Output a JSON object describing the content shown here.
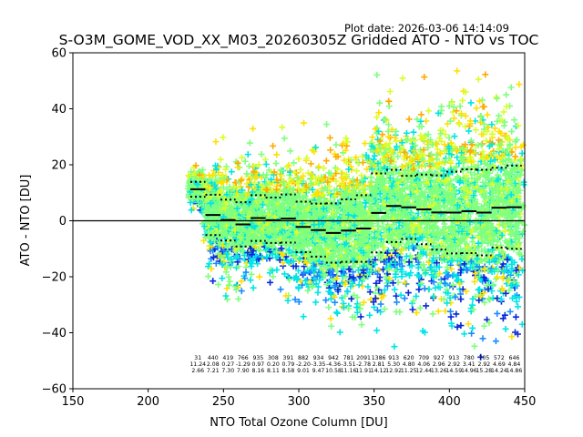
{
  "chart_data": {
    "type": "scatter",
    "title": "S-O3M_GOME_VOD_XX_M03_20260305Z Gridded ATO - NTO vs TOC",
    "subtitle": "Plot date: 2026-03-06 14:14:09",
    "xlabel": "NTO Total Ozone Column [DU]",
    "ylabel": "ATO - NTO [DU]",
    "xlim": [
      150,
      450
    ],
    "ylim": [
      -60,
      60
    ],
    "xticks": [
      150,
      200,
      250,
      300,
      350,
      400,
      450
    ],
    "yticks": [
      -60,
      -40,
      -20,
      0,
      20,
      40,
      60
    ],
    "grid": false,
    "zero_line": 0,
    "scatter_colors": [
      "#0a28d6",
      "#1a8cff",
      "#00e5e5",
      "#7fff7f",
      "#d8ff2a",
      "#ffe000",
      "#ffaa00"
    ],
    "bins": {
      "width": 10,
      "starts": [
        228,
        238,
        248,
        258,
        268,
        278,
        288,
        298,
        308,
        318,
        328,
        338,
        348,
        358,
        368,
        378,
        388,
        398,
        408,
        418,
        428,
        438
      ],
      "counts": [
        31,
        440,
        419,
        766,
        935,
        308,
        391,
        882,
        934,
        942,
        781,
        2091,
        1386,
        913,
        620,
        709,
        927,
        913,
        780,
        705,
        572,
        646
      ],
      "means": [
        11.24,
        2.08,
        0.27,
        -1.29,
        0.97,
        0.2,
        0.79,
        -2.2,
        -3.35,
        -4.36,
        -3.51,
        -2.78,
        2.81,
        5.3,
        4.8,
        4.06,
        2.96,
        2.92,
        3.41,
        2.92,
        4.69,
        4.84
      ],
      "stds": [
        2.66,
        7.21,
        7.3,
        7.9,
        8.16,
        8.11,
        8.58,
        9.01,
        9.47,
        10.58,
        11.16,
        11.91,
        14.12,
        12.92,
        11.25,
        12.44,
        13.26,
        14.59,
        14.96,
        15.28,
        14.24,
        14.86
      ]
    }
  }
}
